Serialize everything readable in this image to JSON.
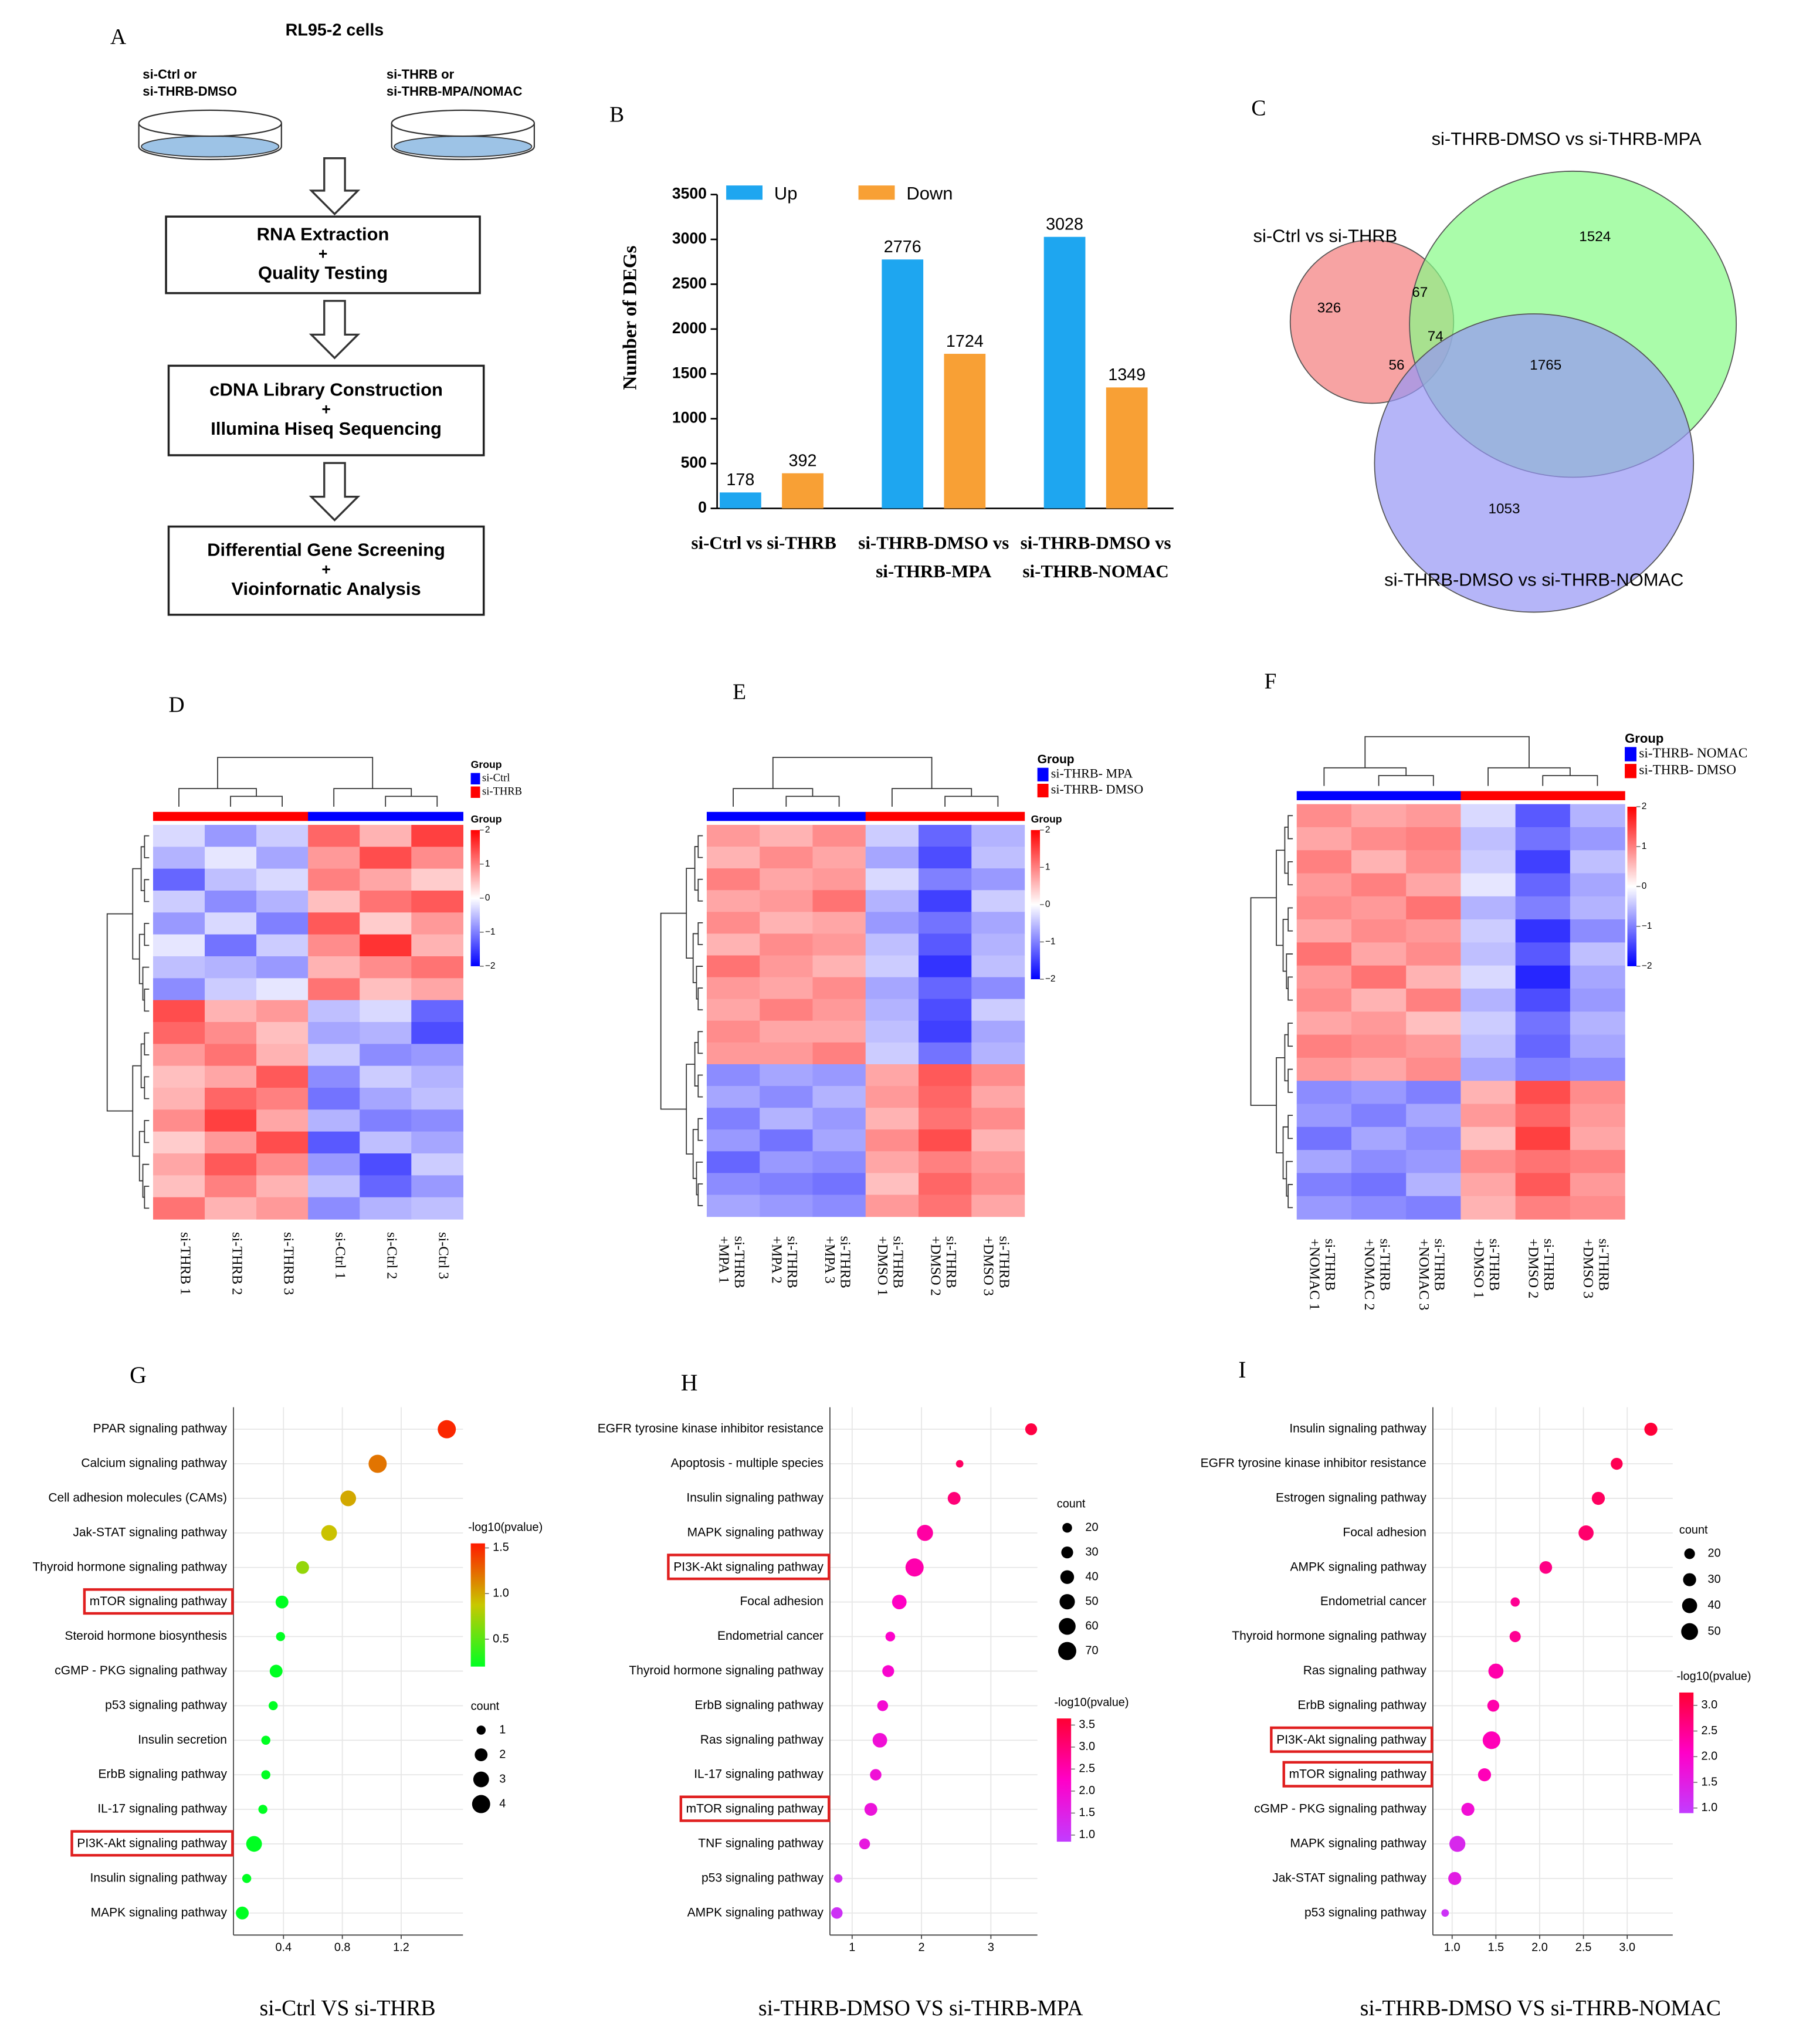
{
  "flowchart": {
    "label": "A",
    "title": "RL95-2 cells",
    "dishes": [
      [
        "si-Ctrl or",
        "si-THRB-DMSO"
      ],
      [
        "si-THRB or",
        "si-THRB-MPA/NOMAC"
      ]
    ],
    "boxes": [
      [
        "RNA Extraction",
        "+",
        "Quality Testing"
      ],
      [
        "cDNA Library Construction",
        "+",
        "Illumina Hiseq Sequencing"
      ],
      [
        "Differential Gene Screening",
        "+",
        "Vioinfornatic Analysis"
      ]
    ]
  },
  "chart_data": [
    {
      "type": "bar",
      "label": "B",
      "ylabel": "Number of DEGs",
      "categories": [
        "si-Ctrl vs si-THRB",
        "si-THRB-DMSO vs si-THRB-MPA",
        "si-THRB-DMSO vs si-THRB-NOMAC"
      ],
      "series": [
        {
          "name": "Up",
          "color": "#1ea6f0",
          "values": [
            178,
            2776,
            3028
          ]
        },
        {
          "name": "Down",
          "color": "#f8a035",
          "values": [
            392,
            1724,
            1349
          ]
        }
      ],
      "ylim": [
        0,
        3500
      ],
      "yticks": [
        0,
        500,
        1000,
        1500,
        2000,
        2500,
        3000,
        3500
      ]
    },
    {
      "type": "venn",
      "label": "C",
      "sets": [
        {
          "name": "si-Ctrl vs si-THRB",
          "color": "#f47c7c"
        },
        {
          "name": "si-THRB-DMSO vs si-THRB-MPA",
          "color": "#86fb86"
        },
        {
          "name": "si-THRB-DMSO vs si-THRB-NOMAC",
          "color": "#9595f5"
        }
      ],
      "values": [
        326,
        1524,
        1053,
        67,
        56,
        74,
        1765
      ]
    },
    {
      "type": "heatmap",
      "label": "D",
      "groups": [
        {
          "name": "si-Ctrl",
          "color": "#0000ff"
        },
        {
          "name": "si-THRB",
          "color": "#ff0000"
        }
      ],
      "group_title": "Group",
      "colorbar_title": "Group",
      "column_groups": [
        1,
        1,
        1,
        0,
        0,
        0
      ],
      "columns": [
        "si-THRB 1",
        "si-THRB 2",
        "si-THRB 3",
        "si-Ctrl 1",
        "si-Ctrl 2",
        "si-Ctrl 3"
      ],
      "clim": [
        -2,
        2
      ],
      "cticks": [
        2,
        1,
        0,
        {
          "value": -1,
          "label": "−1"
        },
        {
          "value": -2,
          "label": "−2"
        }
      ],
      "values": [
        [
          -0.3,
          -0.8,
          -0.4,
          1.2,
          0.6,
          1.5
        ],
        [
          -0.6,
          -0.2,
          -0.7,
          0.8,
          1.4,
          0.9
        ],
        [
          -1.2,
          -0.5,
          -0.3,
          1.0,
          0.7,
          0.4
        ],
        [
          -0.4,
          -0.9,
          -0.6,
          0.5,
          1.1,
          1.3
        ],
        [
          -0.8,
          -0.3,
          -1.0,
          1.3,
          0.4,
          0.8
        ],
        [
          -0.2,
          -1.1,
          -0.4,
          0.9,
          1.6,
          0.6
        ],
        [
          -0.5,
          -0.6,
          -0.8,
          0.6,
          0.9,
          1.1
        ],
        [
          -0.9,
          -0.4,
          -0.2,
          1.1,
          0.5,
          0.7
        ],
        [
          1.4,
          0.6,
          0.8,
          -0.5,
          -0.3,
          -1.2
        ],
        [
          1.2,
          0.9,
          0.5,
          -0.7,
          -0.6,
          -1.4
        ],
        [
          0.8,
          1.1,
          0.6,
          -0.4,
          -0.9,
          -0.8
        ],
        [
          0.5,
          0.7,
          1.3,
          -0.9,
          -0.4,
          -0.6
        ],
        [
          0.6,
          1.2,
          1.0,
          -1.1,
          -0.7,
          -0.5
        ],
        [
          0.9,
          1.5,
          0.7,
          -0.6,
          -1.0,
          -0.9
        ],
        [
          0.4,
          0.8,
          1.4,
          -1.3,
          -0.5,
          -0.7
        ],
        [
          0.7,
          1.3,
          0.9,
          -0.8,
          -1.4,
          -0.4
        ],
        [
          0.5,
          1.0,
          0.6,
          -0.5,
          -1.2,
          -0.8
        ],
        [
          1.1,
          0.6,
          0.8,
          -0.9,
          -0.6,
          -0.5
        ]
      ]
    },
    {
      "type": "heatmap",
      "label": "E",
      "groups": [
        {
          "name": "si-THRB- MPA",
          "color": "#0000ff"
        },
        {
          "name": "si-THRB- DMSO",
          "color": "#ff0000"
        }
      ],
      "group_title": "Group",
      "colorbar_title": "Group",
      "column_groups": [
        0,
        0,
        0,
        1,
        1,
        1
      ],
      "columns": [
        "si-THRB +MPA 1",
        "si-THRB +MPA 2",
        "si-THRB +MPA 3",
        "si-THRB +DMSO 1",
        "si-THRB +DMSO 2",
        "si-THRB +DMSO 3"
      ],
      "clim": [
        -2,
        2
      ],
      "cticks": [
        2,
        1,
        0,
        {
          "value": -1,
          "label": "−1"
        },
        {
          "value": -2,
          "label": "−2"
        }
      ],
      "values": [
        [
          0.8,
          0.6,
          0.9,
          -0.4,
          -1.2,
          -0.6
        ],
        [
          0.6,
          0.9,
          0.7,
          -0.7,
          -1.4,
          -0.5
        ],
        [
          1.0,
          0.7,
          0.8,
          -0.3,
          -1.0,
          -0.8
        ],
        [
          0.7,
          0.8,
          1.1,
          -0.6,
          -1.5,
          -0.4
        ],
        [
          0.9,
          0.6,
          0.7,
          -0.8,
          -1.1,
          -0.7
        ],
        [
          0.6,
          0.9,
          0.8,
          -0.5,
          -1.3,
          -0.6
        ],
        [
          1.1,
          0.8,
          0.6,
          -0.4,
          -1.6,
          -0.5
        ],
        [
          0.8,
          0.7,
          0.9,
          -0.7,
          -1.2,
          -0.9
        ],
        [
          0.7,
          1.0,
          0.8,
          -0.6,
          -1.4,
          -0.4
        ],
        [
          0.9,
          0.7,
          0.7,
          -0.5,
          -1.5,
          -0.7
        ],
        [
          0.8,
          0.8,
          1.0,
          -0.4,
          -1.1,
          -0.6
        ],
        [
          -0.9,
          -0.7,
          -0.8,
          0.7,
          1.3,
          0.9
        ],
        [
          -0.7,
          -0.9,
          -0.6,
          0.8,
          1.2,
          0.7
        ],
        [
          -1.0,
          -0.6,
          -0.8,
          0.6,
          1.1,
          0.9
        ],
        [
          -0.8,
          -1.1,
          -0.7,
          0.9,
          1.4,
          0.6
        ],
        [
          -1.2,
          -0.8,
          -0.9,
          0.7,
          1.0,
          0.8
        ],
        [
          -0.9,
          -1.0,
          -1.1,
          0.5,
          1.2,
          0.9
        ],
        [
          -0.7,
          -0.8,
          -0.9,
          0.8,
          1.1,
          0.7
        ]
      ]
    },
    {
      "type": "heatmap",
      "label": "F",
      "groups": [
        {
          "name": "si-THRB- NOMAC",
          "color": "#0000ff"
        },
        {
          "name": "si-THRB- DMSO",
          "color": "#ff0000"
        }
      ],
      "group_title": "Group",
      "column_groups": [
        0,
        0,
        0,
        1,
        1,
        1
      ],
      "columns": [
        "si-THRB +NOMAC 1",
        "si-THRB +NOMAC 2",
        "si-THRB +NOMAC 3",
        "si-THRB +DMSO 1",
        "si-THRB +DMSO 2",
        "si-THRB +DMSO 3"
      ],
      "clim": [
        -2,
        2
      ],
      "cticks": [
        2,
        1,
        0,
        {
          "value": -1,
          "label": "−1"
        },
        {
          "value": -2,
          "label": "−2"
        }
      ],
      "values": [
        [
          0.9,
          0.7,
          0.8,
          -0.3,
          -1.3,
          -0.6
        ],
        [
          0.7,
          0.9,
          1.0,
          -0.5,
          -1.1,
          -0.8
        ],
        [
          1.0,
          0.6,
          0.9,
          -0.4,
          -1.5,
          -0.5
        ],
        [
          0.8,
          1.0,
          0.7,
          -0.2,
          -1.2,
          -0.7
        ],
        [
          0.9,
          0.8,
          1.1,
          -0.6,
          -1.0,
          -0.6
        ],
        [
          0.7,
          0.9,
          0.8,
          -0.4,
          -1.6,
          -0.9
        ],
        [
          1.1,
          0.7,
          0.9,
          -0.5,
          -1.3,
          -0.5
        ],
        [
          0.8,
          1.1,
          0.6,
          -0.3,
          -1.7,
          -0.7
        ],
        [
          0.9,
          0.6,
          1.0,
          -0.6,
          -1.4,
          -0.8
        ],
        [
          0.7,
          0.8,
          0.5,
          -0.4,
          -1.1,
          -0.6
        ],
        [
          1.0,
          0.9,
          0.8,
          -0.5,
          -1.2,
          -0.7
        ],
        [
          0.8,
          0.7,
          0.9,
          -0.7,
          -1.0,
          -0.9
        ],
        [
          -0.9,
          -0.8,
          -1.0,
          0.6,
          1.4,
          0.9
        ],
        [
          -0.8,
          -1.0,
          -0.7,
          0.8,
          1.2,
          0.8
        ],
        [
          -1.1,
          -0.7,
          -0.9,
          0.5,
          1.5,
          0.7
        ],
        [
          -0.7,
          -0.9,
          -0.8,
          0.9,
          1.1,
          1.0
        ],
        [
          -1.0,
          -1.1,
          -0.6,
          0.7,
          1.3,
          0.8
        ],
        [
          -0.8,
          -0.9,
          -1.0,
          0.6,
          1.0,
          0.9
        ]
      ]
    },
    {
      "type": "dot",
      "label": "G",
      "caption": "si-Ctrl VS si-THRB",
      "categories": [
        "PPAR signaling pathway",
        "Calcium signaling pathway",
        "Cell adhesion molecules (CAMs)",
        "Jak-STAT signaling pathway",
        "Thyroid hormone signaling pathway",
        "mTOR signaling pathway",
        "Steroid hormone biosynthesis",
        "cGMP - PKG signaling pathway",
        "p53 signaling pathway",
        "Insulin secretion",
        "ErbB signaling pathway",
        "IL-17 signaling pathway",
        "PI3K-Akt signaling pathway",
        "Insulin signaling pathway",
        "MAPK signaling pathway"
      ],
      "values": [
        1.51,
        1.04,
        0.84,
        0.71,
        0.53,
        0.39,
        0.38,
        0.35,
        0.33,
        0.28,
        0.28,
        0.26,
        0.2,
        0.15,
        0.12
      ],
      "count": [
        4,
        4,
        3,
        3,
        2,
        2,
        1,
        2,
        1,
        1,
        1,
        1,
        3,
        1,
        2
      ],
      "pvalue": [
        1.5,
        1.2,
        1.0,
        0.9,
        0.7,
        0.2,
        0.2,
        0.2,
        0.2,
        0.2,
        0.2,
        0.2,
        0.2,
        0.2,
        0.2
      ],
      "highlighted": [
        5,
        12
      ],
      "highlight_color": "#e01f1f",
      "xlim": [
        0.06,
        1.62
      ],
      "xticks": [
        0.4,
        0.8,
        1.2
      ],
      "grid": true,
      "size_legend": {
        "title": "count",
        "values": [
          1,
          2,
          3,
          4
        ]
      },
      "color_legend": {
        "title": "-log10(pvalue)",
        "lim": [
          0.2,
          1.55
        ],
        "ticks": [
          0.5,
          {
            "value": 1,
            "label": "1.0"
          },
          1.5
        ],
        "colors": [
          "#00ff22",
          "#c8c800",
          "#ff1a00"
        ]
      }
    },
    {
      "type": "dot",
      "label": "H",
      "caption": "si-THRB-DMSO VS si-THRB-MPA",
      "categories": [
        "EGFR tyrosine kinase inhibitor resistance",
        "Apoptosis - multiple species",
        "Insulin signaling pathway",
        "MAPK signaling pathway",
        "PI3K-Akt signaling pathway",
        "Focal adhesion",
        "Endometrial cancer",
        "Thyroid hormone signaling pathway",
        "ErbB signaling pathway",
        "Ras signaling pathway",
        "IL-17 signaling pathway",
        "mTOR signaling pathway",
        "TNF signaling pathway",
        "p53 signaling pathway",
        "AMPK signaling pathway"
      ],
      "values": [
        3.58,
        2.55,
        2.47,
        2.05,
        1.9,
        1.68,
        1.55,
        1.52,
        1.44,
        1.4,
        1.34,
        1.27,
        1.18,
        0.8,
        0.78
      ],
      "count": [
        30,
        12,
        35,
        55,
        70,
        45,
        20,
        30,
        25,
        45,
        28,
        35,
        25,
        15,
        28
      ],
      "pvalue": [
        3.5,
        3.2,
        3.0,
        2.6,
        2.5,
        2.3,
        2.2,
        2.1,
        2.0,
        1.9,
        1.9,
        1.8,
        1.7,
        1.2,
        1.1
      ],
      "highlighted": [
        4,
        11
      ],
      "highlight_color": "#e01f1f",
      "xlim": [
        0.68,
        3.67
      ],
      "xticks": [
        1,
        2,
        3
      ],
      "grid": true,
      "size_legend": {
        "title": "count",
        "values": [
          20,
          30,
          40,
          50,
          60,
          70
        ]
      },
      "color_legend": {
        "title": "-log10(pvalue)",
        "lim": [
          0.85,
          3.65
        ],
        "ticks": [
          {
            "value": 1,
            "label": "1.0"
          },
          1.5,
          {
            "value": 2,
            "label": "2.0"
          },
          2.5,
          {
            "value": 3,
            "label": "3.0"
          },
          3.5
        ],
        "colors": [
          "#c23cff",
          "#ff00c8",
          "#ff0033"
        ]
      }
    },
    {
      "type": "dot",
      "label": "I",
      "caption": "si-THRB-DMSO VS si-THRB-NOMAC",
      "categories": [
        "Insulin signaling pathway",
        "EGFR tyrosine kinase inhibitor resistance",
        "Estrogen signaling pathway",
        "Focal adhesion",
        "AMPK signaling pathway",
        "Endometrial cancer",
        "Thyroid hormone signaling pathway",
        "Ras signaling pathway",
        "ErbB signaling pathway",
        "PI3K-Akt signaling pathway",
        "mTOR signaling pathway",
        "cGMP - PKG signaling pathway",
        "MAPK signaling pathway",
        "Jak-STAT signaling pathway",
        "p53 signaling pathway"
      ],
      "values": [
        3.27,
        2.88,
        2.67,
        2.53,
        2.07,
        1.72,
        1.72,
        1.5,
        1.47,
        1.45,
        1.37,
        1.18,
        1.06,
        1.03,
        0.92
      ],
      "count": [
        30,
        25,
        30,
        40,
        28,
        15,
        22,
        40,
        25,
        55,
        30,
        30,
        45,
        30,
        10
      ],
      "pvalue": [
        3.2,
        3.0,
        2.9,
        2.8,
        2.6,
        2.5,
        2.5,
        2.3,
        2.3,
        2.2,
        2.2,
        1.8,
        1.3,
        1.5,
        1.1
      ],
      "highlighted": [
        9,
        10
      ],
      "highlight_color": "#e01f1f",
      "xlim": [
        0.78,
        3.52
      ],
      "xticks": [
        {
          "value": 1,
          "label": "1.0"
        },
        1.5,
        {
          "value": 2,
          "label": "2.0"
        },
        2.5,
        {
          "value": 3,
          "label": "3.0"
        }
      ],
      "grid": true,
      "size_legend": {
        "title": "count",
        "values": [
          20,
          30,
          40,
          50
        ]
      },
      "color_legend": {
        "title": "-log10(pvalue)",
        "lim": [
          0.9,
          3.25
        ],
        "ticks": [
          {
            "value": 1,
            "label": "1.0"
          },
          1.5,
          {
            "value": 2,
            "label": "2.0"
          },
          2.5,
          {
            "value": 3,
            "label": "3.0"
          }
        ],
        "colors": [
          "#c23cff",
          "#ff00c8",
          "#ff0033"
        ]
      }
    }
  ]
}
